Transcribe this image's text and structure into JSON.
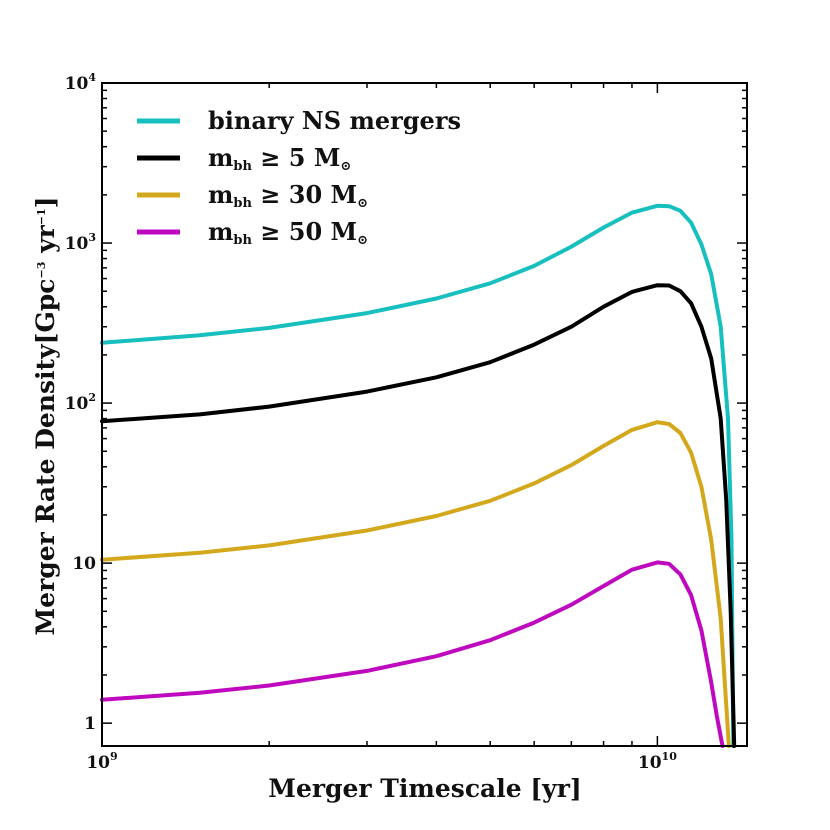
{
  "chart_data": {
    "type": "line",
    "xscale": "log",
    "yscale": "log",
    "xlim": [
      1000000000,
      14500000000
    ],
    "ylim": [
      0.72,
      10000
    ],
    "xlabel": "Merger Timescale [yr]",
    "ylabel": {
      "main": "Merger Rate Density",
      "unit_open": "[Gpc",
      "unit_exp1": "−3",
      "unit_mid": " yr",
      "unit_exp2": "−1",
      "unit_close": "]"
    },
    "x_ticks": [
      {
        "value": 1000000000,
        "base": "10",
        "exp": "9"
      },
      {
        "value": 10000000000,
        "base": "10",
        "exp": "10"
      }
    ],
    "y_ticks": [
      {
        "value": 1,
        "base": "1",
        "exp": ""
      },
      {
        "value": 10,
        "base": "10",
        "exp": ""
      },
      {
        "value": 100,
        "base": "10",
        "exp": "2"
      },
      {
        "value": 1000,
        "base": "10",
        "exp": "3"
      },
      {
        "value": 10000,
        "base": "10",
        "exp": "4"
      }
    ],
    "legend_position": "top-left",
    "grid": false,
    "series": [
      {
        "name": "binary NS mergers",
        "label": {
          "text": "binary NS mergers"
        },
        "color": "#17bfbf",
        "x": [
          1000000000,
          1500000000,
          2000000000,
          3000000000,
          4000000000,
          5000000000,
          6000000000,
          7000000000,
          8000000000,
          9000000000,
          10000000000,
          10500000000,
          11000000000,
          11500000000,
          12000000000,
          12500000000,
          13000000000,
          13400000000,
          13600000000,
          13700000000
        ],
        "y": [
          238,
          265,
          295,
          365,
          450,
          560,
          720,
          950,
          1250,
          1550,
          1710,
          1700,
          1590,
          1340,
          980,
          640,
          300,
          80,
          14,
          0.72
        ]
      },
      {
        "name": "m_bh ≥ 5 M_⊙",
        "label": {
          "base": "m",
          "sub": "bh",
          "rel": " ≥ 5 M",
          "sub2": "⊙"
        },
        "color": "#000000",
        "x": [
          1000000000,
          1500000000,
          2000000000,
          3000000000,
          4000000000,
          5000000000,
          6000000000,
          7000000000,
          8000000000,
          9000000000,
          10000000000,
          10500000000,
          11000000000,
          11500000000,
          12000000000,
          12500000000,
          13000000000,
          13300000000,
          13550000000,
          13750000000
        ],
        "y": [
          77,
          85,
          95,
          118,
          145,
          180,
          232,
          300,
          400,
          495,
          545,
          543,
          500,
          420,
          300,
          190,
          80,
          25,
          5,
          0.72
        ]
      },
      {
        "name": "m_bh ≥ 30 M_⊙",
        "label": {
          "base": "m",
          "sub": "bh",
          "rel": " ≥ 30 M",
          "sub2": "⊙"
        },
        "color": "#d4a81c",
        "x": [
          1000000000,
          1500000000,
          2000000000,
          3000000000,
          4000000000,
          5000000000,
          6000000000,
          7000000000,
          8000000000,
          9000000000,
          10000000000,
          10500000000,
          11000000000,
          11500000000,
          12000000000,
          12500000000,
          13000000000,
          13200000000,
          13450000000
        ],
        "y": [
          10.5,
          11.6,
          12.9,
          16,
          19.7,
          24.5,
          31.5,
          41,
          54,
          68,
          76,
          74,
          65,
          49,
          30,
          14,
          4.5,
          2,
          0.72
        ]
      },
      {
        "name": "m_bh ≥ 50 M_⊙",
        "label": {
          "base": "m",
          "sub": "bh",
          "rel": " ≥ 50 M",
          "sub2": "⊙"
        },
        "color": "#bf09bf",
        "x": [
          1000000000,
          1500000000,
          2000000000,
          3000000000,
          4000000000,
          5000000000,
          6000000000,
          7000000000,
          8000000000,
          9000000000,
          10000000000,
          10500000000,
          11000000000,
          11500000000,
          12000000000,
          12500000000,
          12800000000,
          13100000000
        ],
        "y": [
          1.4,
          1.55,
          1.72,
          2.12,
          2.62,
          3.3,
          4.25,
          5.5,
          7.2,
          9.1,
          10.1,
          9.9,
          8.5,
          6.3,
          3.8,
          1.8,
          1.1,
          0.72
        ]
      }
    ]
  }
}
